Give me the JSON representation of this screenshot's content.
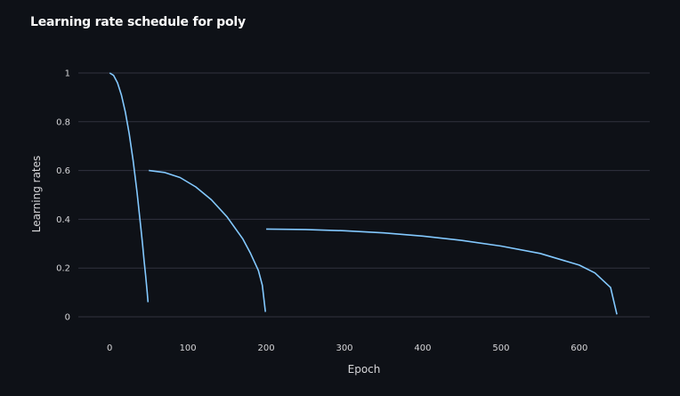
{
  "chart_data": {
    "type": "line",
    "title": "Learning rate schedule for poly",
    "xlabel": "Epoch",
    "ylabel": "Learning rates",
    "xlim": [
      -40,
      690
    ],
    "ylim": [
      0,
      1
    ],
    "x_ticks": [
      0,
      100,
      200,
      300,
      400,
      500,
      600
    ],
    "y_ticks": [
      0,
      0.2,
      0.4,
      0.6,
      0.8,
      1
    ],
    "y_tick_labels": [
      "0",
      "0.2",
      "0.4",
      "0.6",
      "0.8",
      "1"
    ],
    "grid": true,
    "legend": "none",
    "line_color": "#83c9ff",
    "series": [
      {
        "x": [
          0,
          5,
          10,
          15,
          20,
          25,
          30,
          35,
          40,
          42,
          44,
          46,
          48,
          49
        ],
        "values": [
          1.0,
          0.99,
          0.96,
          0.91,
          0.84,
          0.75,
          0.64,
          0.51,
          0.36,
          0.3,
          0.23,
          0.17,
          0.1,
          0.06
        ]
      },
      {
        "x": [
          50,
          70,
          90,
          110,
          130,
          150,
          170,
          180,
          190,
          195,
          199
        ],
        "values": [
          0.6,
          0.592,
          0.571,
          0.533,
          0.48,
          0.41,
          0.32,
          0.26,
          0.19,
          0.13,
          0.02
        ]
      },
      {
        "x": [
          200,
          250,
          300,
          350,
          400,
          450,
          500,
          550,
          600,
          620,
          640,
          648
        ],
        "values": [
          0.36,
          0.358,
          0.353,
          0.344,
          0.331,
          0.313,
          0.29,
          0.26,
          0.212,
          0.18,
          0.12,
          0.01
        ]
      }
    ]
  }
}
